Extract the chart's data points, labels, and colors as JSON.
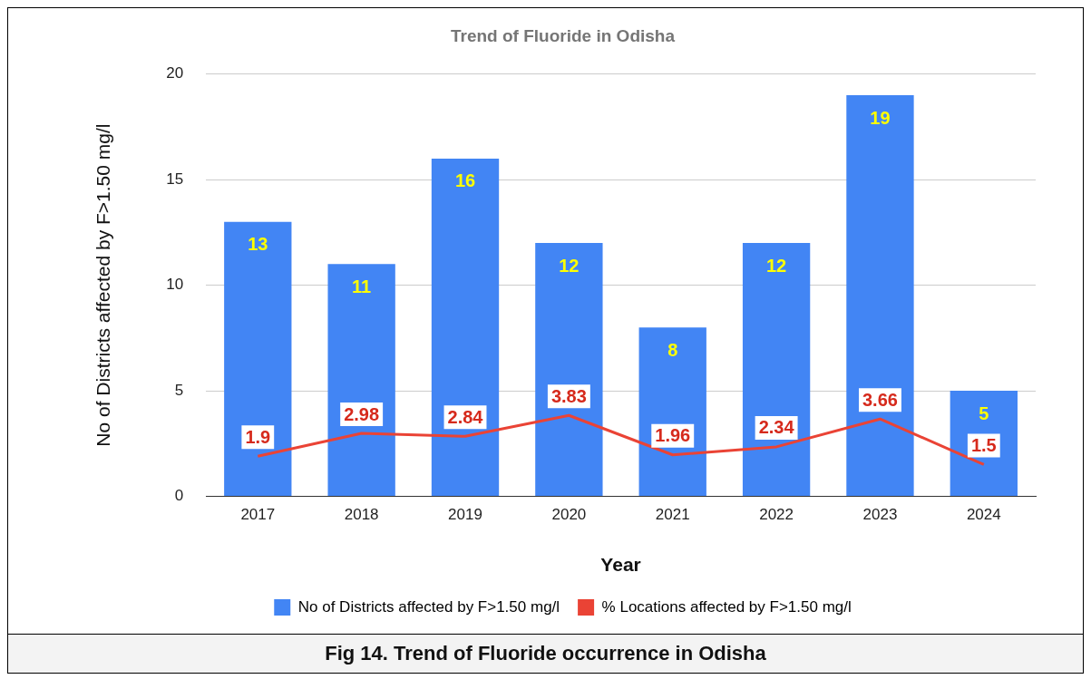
{
  "chart_data": {
    "type": "bar",
    "title": "Trend of Fluoride in Odisha",
    "xlabel": "Year",
    "ylabel": "No of Districts affected by F>1.50 mg/l",
    "categories": [
      "2017",
      "2018",
      "2019",
      "2020",
      "2021",
      "2022",
      "2023",
      "2024"
    ],
    "series": [
      {
        "name": "No of Districts affected by F>1.50 mg/l",
        "color": "#4285f4",
        "values": [
          13,
          11,
          16,
          12,
          8,
          12,
          19,
          5
        ]
      },
      {
        "name": "% Locations affected by F>1.50 mg/l",
        "type": "line",
        "color": "#ea4335",
        "values": [
          1.9,
          2.98,
          2.84,
          3.83,
          1.96,
          2.34,
          3.66,
          1.5
        ]
      }
    ],
    "ylim": [
      0,
      20
    ],
    "yticks": [
      0,
      5,
      10,
      15,
      20
    ],
    "grid": "y",
    "legend": "bottom",
    "marker": "none",
    "line_style": "solid",
    "data_labels": true,
    "annotations": [
      "Fig 14. Trend of Fluoride occurrence in Odisha"
    ]
  }
}
